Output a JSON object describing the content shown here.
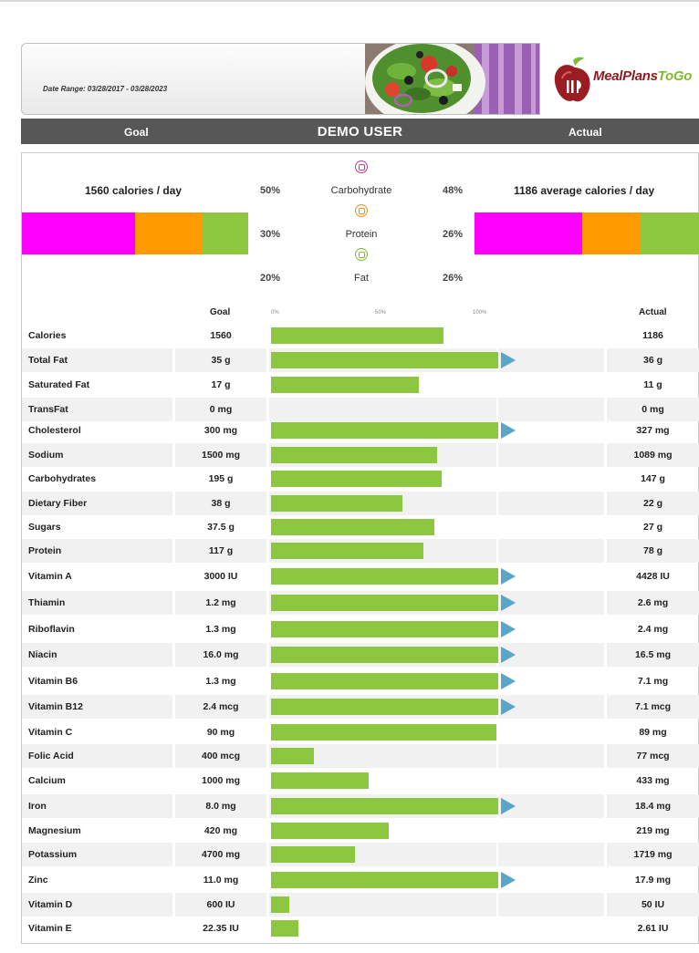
{
  "header": {
    "date_range": "Date Range: 03/28/2017 - 03/28/2023",
    "logo_text_a": "MealPlans",
    "logo_text_b": "ToGo"
  },
  "title_bar": {
    "goal": "Goal",
    "user": "DEMO USER",
    "actual": "Actual"
  },
  "macros": {
    "goal_calories": "1560 calories / day",
    "actual_calories": "1186 average calories / day",
    "colors": {
      "carbohydrate": "#ff00ff",
      "protein": "#ff9900",
      "fat": "#8dc63f"
    },
    "items": [
      {
        "name": "Carbohydrate",
        "goal_pct": "50%",
        "actual_pct": "48%",
        "goal_value": 50,
        "actual_value": 48,
        "icon": "wheat-icon",
        "color": "#c0399c"
      },
      {
        "name": "Protein",
        "goal_pct": "30%",
        "actual_pct": "26%",
        "goal_value": 30,
        "actual_value": 26,
        "icon": "drumstick-icon",
        "color": "#e89416"
      },
      {
        "name": "Fat",
        "goal_pct": "20%",
        "actual_pct": "26%",
        "goal_value": 20,
        "actual_value": 26,
        "icon": "avocado-icon",
        "color": "#7fba30"
      }
    ]
  },
  "table": {
    "goal_header": "Goal",
    "actual_header": "Actual",
    "scale_ticks": [
      "0%",
      "50%",
      "100%"
    ],
    "bar_color": "#8dc63f",
    "arrow_color": "#5ba5c8",
    "rows": [
      {
        "name": "Calories",
        "goal": "1560",
        "actual": "1186",
        "percent": 76
      },
      {
        "name": "Total Fat",
        "goal": "35 g",
        "actual": "36 g",
        "percent": 103
      },
      {
        "name": "Saturated Fat",
        "goal": "17 g",
        "actual": "11 g",
        "percent": 65
      },
      {
        "name": "TransFat",
        "goal": "0 mg",
        "actual": "0 mg",
        "percent": 0
      },
      {
        "name": "Cholesterol",
        "goal": "300 mg",
        "actual": "327 mg",
        "percent": 109
      },
      {
        "name": "Sodium",
        "goal": "1500 mg",
        "actual": "1089 mg",
        "percent": 73
      },
      {
        "name": "Carbohydrates",
        "goal": "195 g",
        "actual": "147 g",
        "percent": 75
      },
      {
        "name": "Dietary Fiber",
        "goal": "38 g",
        "actual": "22 g",
        "percent": 58
      },
      {
        "name": "Sugars",
        "goal": "37.5 g",
        "actual": "27 g",
        "percent": 72
      },
      {
        "name": "Protein",
        "goal": "117 g",
        "actual": "78 g",
        "percent": 67
      },
      {
        "name": "Vitamin A",
        "goal": "3000 IU",
        "actual": "4428 IU",
        "percent": 148
      },
      {
        "name": "Thiamin",
        "goal": "1.2 mg",
        "actual": "2.6 mg",
        "percent": 217
      },
      {
        "name": "Riboflavin",
        "goal": "1.3 mg",
        "actual": "2.4 mg",
        "percent": 185
      },
      {
        "name": "Niacin",
        "goal": "16.0 mg",
        "actual": "16.5 mg",
        "percent": 103
      },
      {
        "name": "Vitamin B6",
        "goal": "1.3 mg",
        "actual": "7.1 mg",
        "percent": 546
      },
      {
        "name": "Vitamin B12",
        "goal": "2.4 mcg",
        "actual": "7.1 mcg",
        "percent": 296
      },
      {
        "name": "Vitamin C",
        "goal": "90 mg",
        "actual": "89 mg",
        "percent": 99
      },
      {
        "name": "Folic Acid",
        "goal": "400 mcg",
        "actual": "77 mcg",
        "percent": 19
      },
      {
        "name": "Calcium",
        "goal": "1000 mg",
        "actual": "433 mg",
        "percent": 43
      },
      {
        "name": "Iron",
        "goal": "8.0 mg",
        "actual": "18.4 mg",
        "percent": 230
      },
      {
        "name": "Magnesium",
        "goal": "420 mg",
        "actual": "219 mg",
        "percent": 52
      },
      {
        "name": "Potassium",
        "goal": "4700 mg",
        "actual": "1719 mg",
        "percent": 37
      },
      {
        "name": "Zinc",
        "goal": "11.0 mg",
        "actual": "17.9 mg",
        "percent": 163
      },
      {
        "name": "Vitamin D",
        "goal": "600 IU",
        "actual": "50 IU",
        "percent": 8
      },
      {
        "name": "Vitamin E",
        "goal": "22.35 IU",
        "actual": "2.61 IU",
        "percent": 12
      }
    ]
  }
}
